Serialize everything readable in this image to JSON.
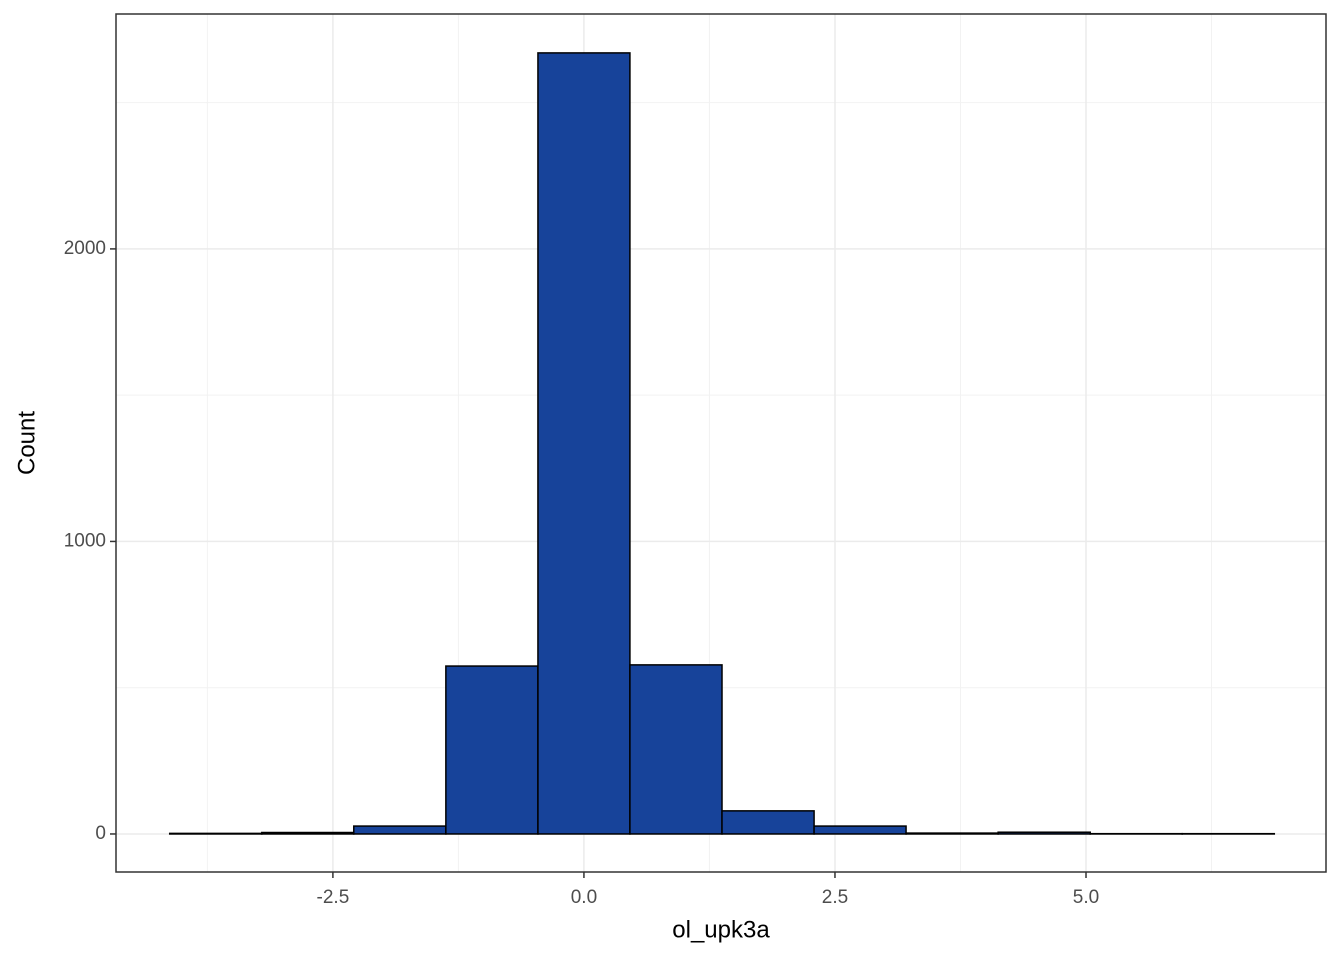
{
  "chart_data": {
    "type": "histogram",
    "x_label": "ol_upk3a",
    "y_label": "Count",
    "bins": [
      -4.125,
      -3.208,
      -2.292,
      -1.375,
      -0.458,
      0.458,
      1.375,
      2.292,
      3.208,
      4.125,
      5.042,
      5.958,
      6.875
    ],
    "values": [
      2,
      5,
      27,
      574,
      2670,
      578,
      79,
      27,
      3,
      6,
      1,
      1
    ],
    "color": "#17439a",
    "edge_color": "#000000",
    "xlim": [
      -4.66,
      7.39
    ],
    "ylim": [
      -130,
      2803
    ],
    "xticks": [
      -2.5,
      {
        "value": 0,
        "label": "0.0"
      },
      2.5,
      {
        "value": 5,
        "label": "5.0"
      }
    ],
    "yticks": [
      0,
      1000,
      2000
    ],
    "x_minor_ticks": [
      -3.75,
      -1.25,
      1.25,
      3.75,
      6.25
    ],
    "y_minor_ticks": [
      500,
      1500,
      2500
    ],
    "grid": true
  }
}
